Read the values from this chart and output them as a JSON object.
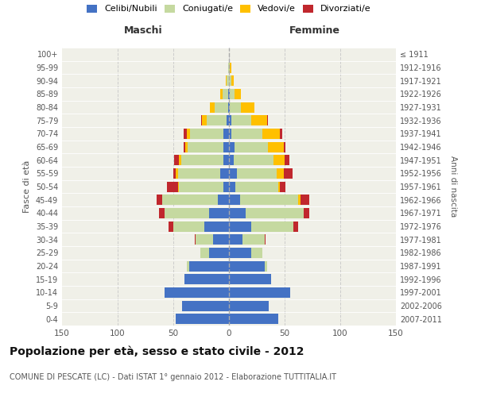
{
  "age_groups": [
    "0-4",
    "5-9",
    "10-14",
    "15-19",
    "20-24",
    "25-29",
    "30-34",
    "35-39",
    "40-44",
    "45-49",
    "50-54",
    "55-59",
    "60-64",
    "65-69",
    "70-74",
    "75-79",
    "80-84",
    "85-89",
    "90-94",
    "95-99",
    "100+"
  ],
  "birth_years": [
    "2007-2011",
    "2002-2006",
    "1997-2001",
    "1992-1996",
    "1987-1991",
    "1982-1986",
    "1977-1981",
    "1972-1976",
    "1967-1971",
    "1962-1966",
    "1957-1961",
    "1952-1956",
    "1947-1951",
    "1942-1946",
    "1937-1941",
    "1932-1936",
    "1927-1931",
    "1922-1926",
    "1917-1921",
    "1912-1916",
    "≤ 1911"
  ],
  "males": {
    "celibi": [
      48,
      42,
      58,
      40,
      36,
      18,
      14,
      22,
      18,
      10,
      5,
      8,
      5,
      5,
      5,
      2,
      1,
      1,
      0,
      0,
      0
    ],
    "coniugati": [
      0,
      0,
      0,
      0,
      2,
      8,
      16,
      28,
      40,
      50,
      40,
      38,
      38,
      32,
      30,
      18,
      12,
      5,
      2,
      1,
      0
    ],
    "vedovi": [
      0,
      0,
      0,
      0,
      0,
      0,
      0,
      0,
      0,
      0,
      1,
      2,
      2,
      2,
      3,
      4,
      4,
      2,
      1,
      0,
      0
    ],
    "divorziati": [
      0,
      0,
      0,
      0,
      0,
      0,
      1,
      4,
      5,
      5,
      10,
      2,
      4,
      2,
      3,
      1,
      0,
      0,
      0,
      0,
      0
    ]
  },
  "females": {
    "nubili": [
      44,
      36,
      55,
      38,
      32,
      20,
      12,
      20,
      15,
      10,
      6,
      7,
      4,
      5,
      2,
      2,
      1,
      1,
      0,
      0,
      0
    ],
    "coniugate": [
      0,
      0,
      0,
      0,
      2,
      10,
      20,
      38,
      52,
      52,
      38,
      36,
      36,
      30,
      28,
      18,
      10,
      4,
      2,
      1,
      0
    ],
    "vedove": [
      0,
      0,
      0,
      0,
      0,
      0,
      0,
      0,
      0,
      2,
      2,
      6,
      10,
      14,
      16,
      14,
      12,
      6,
      2,
      1,
      0
    ],
    "divorziate": [
      0,
      0,
      0,
      0,
      0,
      0,
      1,
      4,
      5,
      8,
      5,
      8,
      4,
      2,
      2,
      1,
      0,
      0,
      0,
      0,
      0
    ]
  },
  "color_celibi": "#4472c4",
  "color_coniugati": "#c5d9a0",
  "color_vedovi": "#ffc000",
  "color_divorziati": "#c0272d",
  "xlim": 150,
  "title": "Popolazione per età, sesso e stato civile - 2012",
  "subtitle": "COMUNE DI PESCATE (LC) - Dati ISTAT 1° gennaio 2012 - Elaborazione TUTTITALIA.IT",
  "ylabel": "Fasce di età",
  "ylabel_right": "Anni di nascita",
  "xlabel_left": "Maschi",
  "xlabel_right": "Femmine",
  "bg_color": "#f0f0e8",
  "grid_color": "#cccccc"
}
